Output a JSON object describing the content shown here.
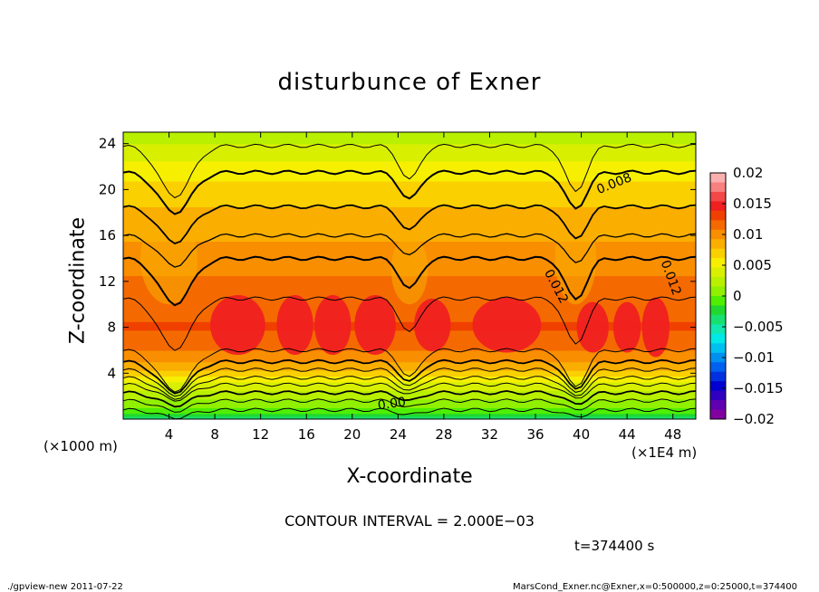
{
  "chart_data": {
    "type": "heatmap",
    "title": "disturbunce of Exner",
    "xlabel": "X-coordinate",
    "ylabel": "Z-coordinate",
    "x_unit_label": "(×1000 m)",
    "x_unit_label_right": "(×1E4 m)",
    "xlim": [
      0,
      50
    ],
    "ylim": [
      0,
      25
    ],
    "xticks": [
      4,
      8,
      12,
      16,
      20,
      24,
      28,
      32,
      36,
      40,
      44,
      48
    ],
    "yticks": [
      4,
      8,
      12,
      16,
      20,
      24
    ],
    "colorbar": {
      "ticks": [
        0.02,
        0.015,
        0.01,
        0.005,
        0,
        -0.005,
        -0.01,
        -0.015,
        -0.02
      ],
      "tick_labels": [
        "0.02",
        "0.015",
        "0.01",
        "0.005",
        "0",
        "−0.005",
        "−0.01",
        "−0.015",
        "−0.02"
      ],
      "colors": [
        "#fbb0b0",
        "#f78080",
        "#f34848",
        "#f02020",
        "#f04000",
        "#f46a00",
        "#f88e00",
        "#faae00",
        "#fbd000",
        "#f6f000",
        "#d8f000",
        "#b8f000",
        "#90f000",
        "#50ee00",
        "#20d830",
        "#18e070",
        "#10e8b0",
        "#00e8e8",
        "#00c0f0",
        "#0090f0",
        "#0060f0",
        "#0030e0",
        "#0000d0",
        "#3000c0",
        "#6000b0",
        "#8000a0"
      ]
    },
    "contour_labels": [
      "0.008",
      "0.012",
      "0.012",
      "0.00"
    ],
    "contour_interval_text": "CONTOUR INTERVAL = 2.000E−03",
    "profile_points": [
      {
        "z": 0,
        "value": -0.004
      },
      {
        "z": 1,
        "value": 0.0
      },
      {
        "z": 2,
        "value": 0.002
      },
      {
        "z": 3,
        "value": 0.004
      },
      {
        "z": 4,
        "value": 0.007
      },
      {
        "z": 5,
        "value": 0.009
      },
      {
        "z": 6,
        "value": 0.011
      },
      {
        "z": 8,
        "value": 0.0125
      },
      {
        "z": 12,
        "value": 0.011
      },
      {
        "z": 16,
        "value": 0.009
      },
      {
        "z": 20,
        "value": 0.007
      },
      {
        "z": 24,
        "value": 0.003
      }
    ]
  },
  "time_text": "t=374400 s",
  "footer_left": "./gpview-new   2011-07-22",
  "footer_right": "MarsCond_Exner.nc@Exner,x=0:500000,z=0:25000,t=374400"
}
